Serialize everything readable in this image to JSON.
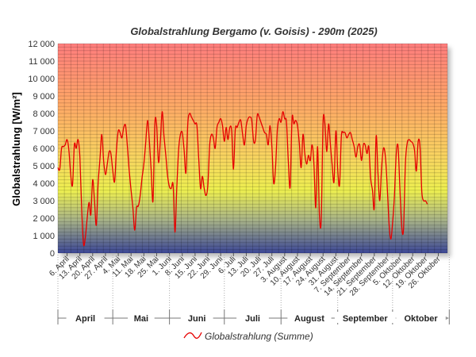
{
  "chart_data": {
    "type": "line",
    "title": "Globalstrahlung Bergamo (v. Goisis) - 290m (2025)",
    "ylabel": "Globalstrahlung [W/m²]",
    "xlabel": "",
    "ylim": [
      0,
      12000
    ],
    "y_ticks": [
      "0",
      "1 000",
      "2 000",
      "3 000",
      "4 000",
      "5 000",
      "6 000",
      "7 000",
      "8 000",
      "9 000",
      "10 000",
      "11 000",
      "12 000"
    ],
    "x_ticks": [
      "6. April",
      "13. April",
      "20. April",
      "27. April",
      "4. Mai",
      "11. Mai",
      "18. Mai",
      "25. Mai",
      "1. Juni",
      "8. Juni",
      "15. Juni",
      "22. Juni",
      "29. Juni",
      "6. Juli",
      "13. Juli",
      "20. Juli",
      "27. Juli",
      "3. August",
      "10. August",
      "17. August",
      "24. August",
      "31. August",
      "7. September",
      "14. September",
      "21. September",
      "28. September",
      "5. Oktober",
      "12. Oktober",
      "19. Oktober",
      "26. Oktober"
    ],
    "months": [
      "April",
      "Mai",
      "Juni",
      "Juli",
      "August",
      "September",
      "Oktober"
    ],
    "grid": true,
    "legend_position": "bottom-center",
    "series": [
      {
        "name": "Globalstrahlung (Summe)",
        "color": "#e60000",
        "x_start": "2025-04-01",
        "values": [
          4900,
          4800,
          6000,
          6100,
          6200,
          6500,
          5900,
          4500,
          3900,
          6200,
          6000,
          6500,
          5500,
          2500,
          500,
          900,
          2000,
          2900,
          2200,
          4200,
          3000,
          1600,
          4000,
          5400,
          6800,
          5300,
          4500,
          5100,
          5800,
          5700,
          4700,
          4100,
          5900,
          7000,
          6900,
          6600,
          7200,
          7300,
          6100,
          4700,
          3600,
          2600,
          1300,
          2600,
          2700,
          3300,
          4300,
          5100,
          6300,
          7600,
          6400,
          4700,
          3000,
          7400,
          7300,
          5200,
          6400,
          8100,
          6700,
          5600,
          4400,
          3800,
          3700,
          3900,
          1200,
          3700,
          5900,
          6800,
          6900,
          5900,
          4600,
          7400,
          8000,
          7800,
          7600,
          7400,
          7300,
          5400,
          3700,
          4400,
          3700,
          3300,
          3900,
          6200,
          6800,
          6600,
          6000,
          7200,
          7500,
          7700,
          7300,
          6400,
          7200,
          6500,
          7200,
          7000,
          4800,
          7100,
          7200,
          7500,
          7600,
          6800,
          6200,
          7300,
          7700,
          7800,
          7600,
          6400,
          6500,
          7900,
          7800,
          7500,
          7200,
          6900,
          6800,
          6200,
          7300,
          6100,
          4000,
          4900,
          7100,
          7700,
          7500,
          8100,
          7700,
          7500,
          5200,
          3800,
          7700,
          7400,
          7600,
          7300,
          6300,
          4900,
          6800,
          5700,
          5100,
          5600,
          5300,
          6200,
          5100,
          2600,
          6100,
          2200,
          1900,
          7500,
          7400,
          5800,
          7400,
          6200,
          5000,
          4100,
          7000,
          4800,
          3900,
          6700,
          6900,
          6900,
          6600,
          6800,
          6900,
          6500,
          6100,
          5500,
          6100,
          6200,
          5300,
          6200,
          6200,
          5700,
          6100,
          4300,
          3600,
          2600,
          6700,
          4600,
          3000,
          4900,
          6000,
          5600,
          4000,
          1800,
          800,
          1700,
          3300,
          5700,
          6100,
          3700,
          1500,
          1400,
          5100,
          6300,
          6500,
          6400,
          6300,
          5900,
          4700,
          6400,
          6100,
          3500,
          3000,
          3000,
          2800
        ]
      }
    ]
  }
}
